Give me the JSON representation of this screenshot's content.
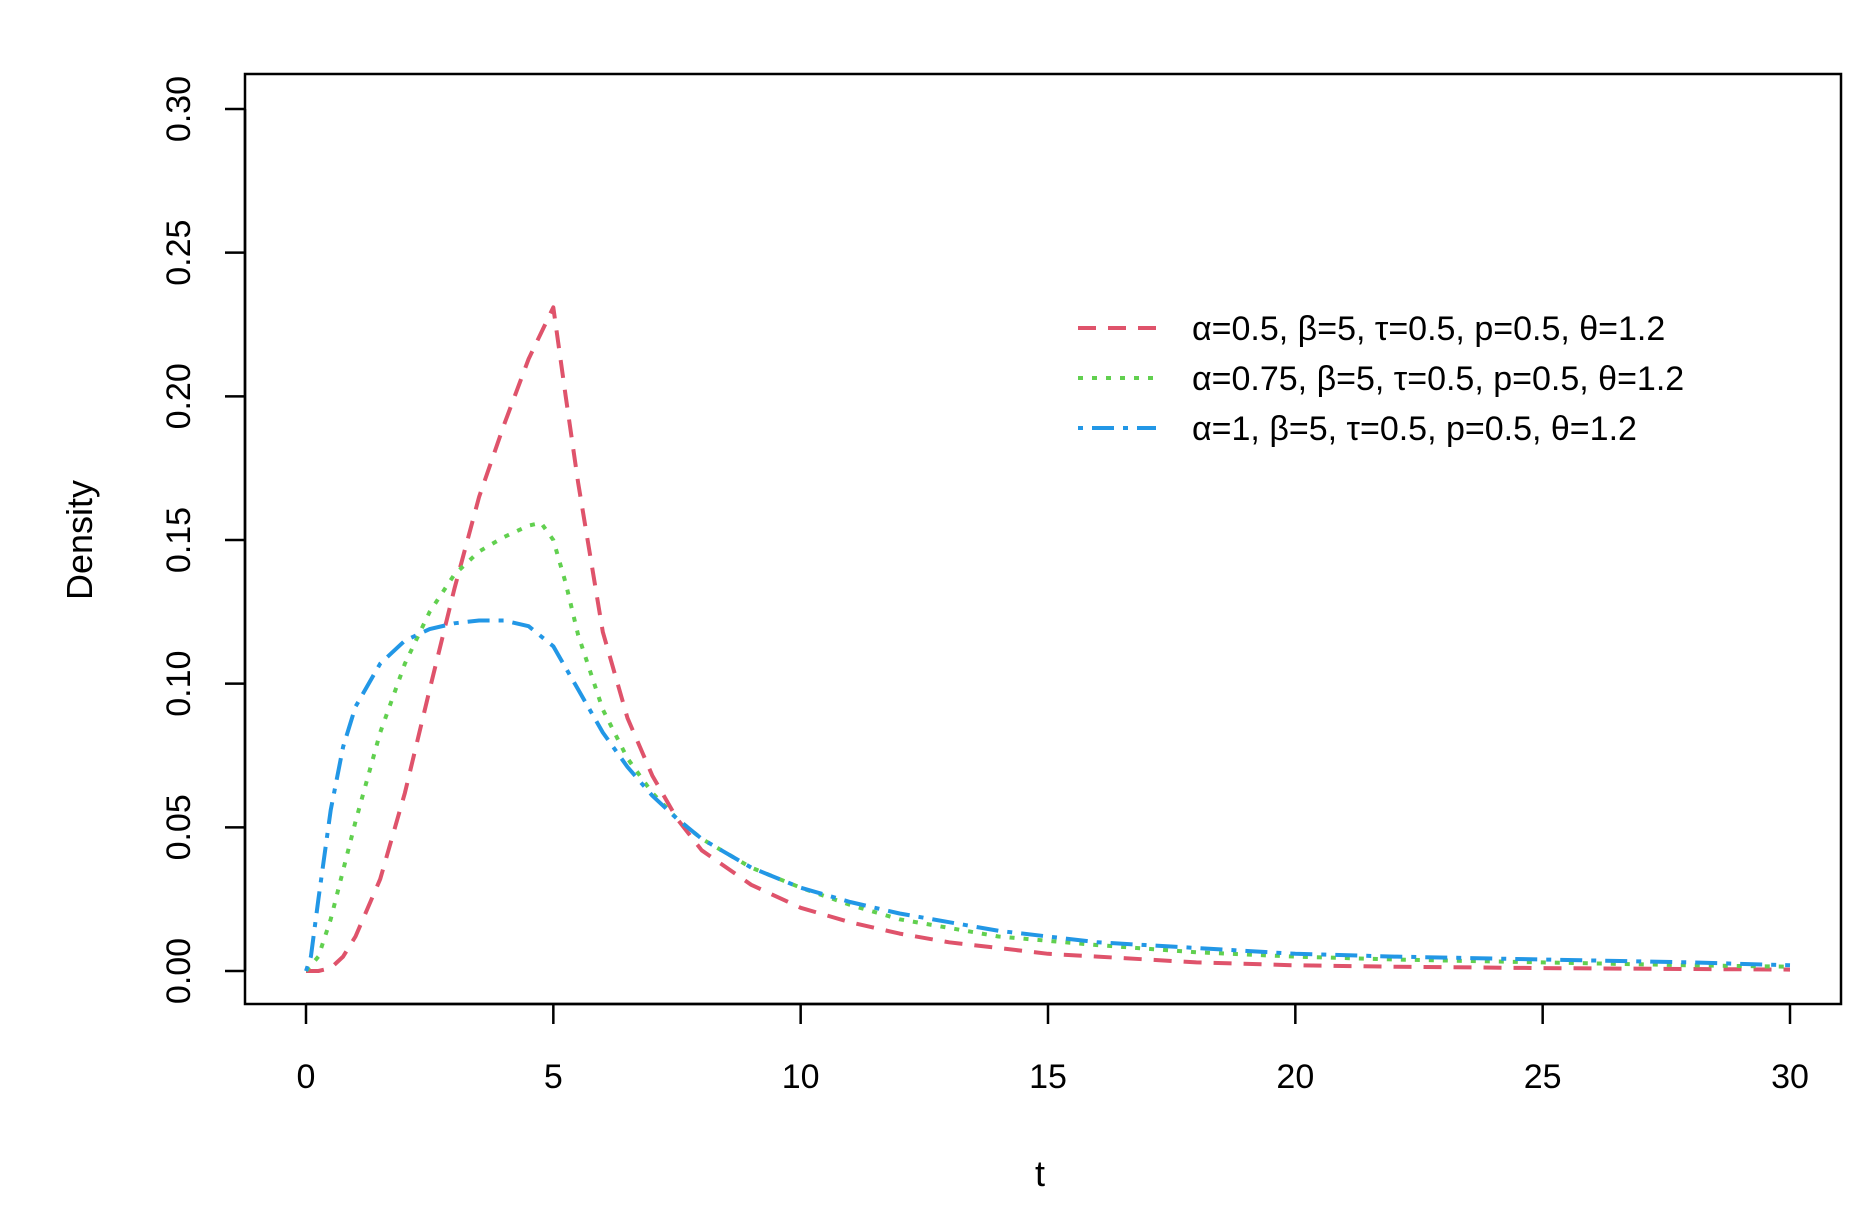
{
  "chart_data": {
    "type": "line",
    "title": "",
    "xlabel": "t",
    "ylabel": "Density",
    "xlim": [
      0,
      30
    ],
    "ylim": [
      0,
      0.3
    ],
    "xticks": [
      "0",
      "5",
      "10",
      "15",
      "20",
      "25",
      "30"
    ],
    "yticks": [
      "0.00",
      "0.05",
      "0.10",
      "0.15",
      "0.20",
      "0.25",
      "0.30"
    ],
    "grid": false,
    "legend_position": "top-right",
    "series": [
      {
        "name": "α=0.5, β=5, τ=0.5, p=0.5, θ=1.2",
        "color": "#DF536B",
        "dash": "dashed",
        "x": [
          0,
          0.25,
          0.5,
          0.75,
          1,
          1.5,
          2,
          2.5,
          3,
          3.5,
          4,
          4.5,
          4.75,
          5,
          5.25,
          5.5,
          6,
          6.5,
          7,
          7.5,
          8,
          9,
          10,
          11,
          12,
          13,
          14,
          15,
          16,
          18,
          20,
          22,
          25,
          28,
          30
        ],
        "y": [
          0,
          0,
          0.001,
          0.005,
          0.012,
          0.032,
          0.062,
          0.098,
          0.133,
          0.165,
          0.19,
          0.213,
          0.222,
          0.231,
          0.2,
          0.17,
          0.118,
          0.088,
          0.068,
          0.053,
          0.042,
          0.03,
          0.022,
          0.017,
          0.013,
          0.01,
          0.008,
          0.006,
          0.005,
          0.003,
          0.002,
          0.0015,
          0.001,
          0.0007,
          0.0005
        ]
      },
      {
        "name": "α=0.75, β=5, τ=0.5, p=0.5, θ=1.2",
        "color": "#61D04F",
        "dash": "dotted",
        "x": [
          0,
          0.25,
          0.5,
          0.75,
          1,
          1.5,
          2,
          2.5,
          3,
          3.5,
          4,
          4.5,
          4.75,
          5,
          5.25,
          5.5,
          6,
          6.5,
          7,
          7.5,
          8,
          9,
          10,
          11,
          12,
          14,
          16,
          18,
          20,
          22,
          25,
          28,
          30
        ],
        "y": [
          0,
          0.005,
          0.018,
          0.035,
          0.052,
          0.083,
          0.107,
          0.125,
          0.138,
          0.146,
          0.151,
          0.155,
          0.156,
          0.15,
          0.135,
          0.117,
          0.091,
          0.074,
          0.062,
          0.053,
          0.046,
          0.036,
          0.029,
          0.023,
          0.018,
          0.012,
          0.009,
          0.0065,
          0.005,
          0.004,
          0.003,
          0.002,
          0.0015
        ]
      },
      {
        "name": "α=1, β=5, τ=0.5, p=0.5, θ=1.2",
        "color": "#2297E6",
        "dash": "dotdash",
        "x": [
          0,
          0.1,
          0.25,
          0.5,
          0.75,
          1,
          1.5,
          2,
          2.5,
          3,
          3.5,
          4,
          4.5,
          5,
          5.5,
          6,
          6.5,
          7,
          7.5,
          8,
          9,
          10,
          11,
          12,
          13,
          14,
          15,
          16,
          18,
          20,
          22,
          25,
          28,
          30
        ],
        "y": [
          0,
          0.005,
          0.025,
          0.056,
          0.078,
          0.092,
          0.107,
          0.115,
          0.119,
          0.121,
          0.122,
          0.122,
          0.12,
          0.113,
          0.098,
          0.083,
          0.071,
          0.061,
          0.053,
          0.046,
          0.036,
          0.029,
          0.024,
          0.02,
          0.017,
          0.014,
          0.012,
          0.01,
          0.008,
          0.006,
          0.005,
          0.004,
          0.003,
          0.002
        ]
      }
    ]
  }
}
